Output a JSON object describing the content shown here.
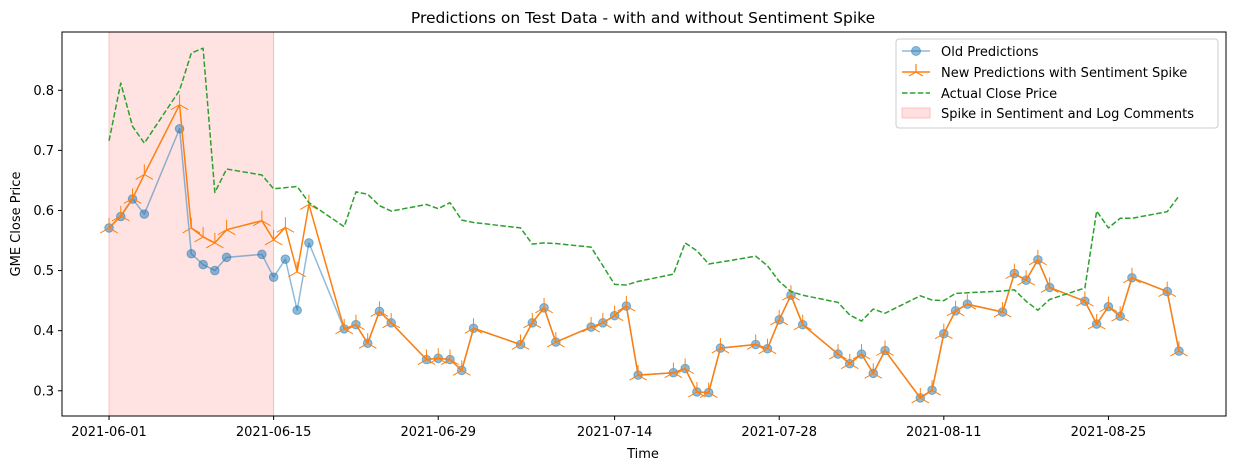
{
  "chart_data": {
    "type": "line",
    "title": "Predictions on Test Data - with and without Sentiment Spike",
    "xlabel": "Time",
    "ylabel": "GME Close Price",
    "xlim": [
      "2021-05-28",
      "2021-09-04"
    ],
    "ylim": [
      0.258,
      0.897
    ],
    "x_ticks": [
      "2021-06-01",
      "2021-06-15",
      "2021-06-29",
      "2021-07-14",
      "2021-07-28",
      "2021-08-11",
      "2021-08-25"
    ],
    "y_ticks": [
      0.3,
      0.4,
      0.5,
      0.6,
      0.7,
      0.8
    ],
    "y_tick_labels": [
      "0.3",
      "0.4",
      "0.5",
      "0.6",
      "0.7",
      "0.8"
    ],
    "spike_region": {
      "name": "Spike in Sentiment and Log Comments",
      "x_start": "2021-06-01",
      "x_end": "2021-06-15",
      "color": "#ffcccc"
    },
    "legend_position": "upper right",
    "series": [
      {
        "name": "Old Predictions",
        "color": "#1f77b4",
        "marker": "circle",
        "points": [
          [
            "2021-06-01",
            0.571
          ],
          [
            "2021-06-02",
            0.59
          ],
          [
            "2021-06-03",
            0.619
          ],
          [
            "2021-06-04",
            0.594
          ],
          [
            "2021-06-07",
            0.736
          ],
          [
            "2021-06-08",
            0.528
          ],
          [
            "2021-06-09",
            0.51
          ],
          [
            "2021-06-10",
            0.5
          ],
          [
            "2021-06-11",
            0.522
          ],
          [
            "2021-06-14",
            0.527
          ],
          [
            "2021-06-15",
            0.489
          ],
          [
            "2021-06-16",
            0.519
          ],
          [
            "2021-06-17",
            0.434
          ],
          [
            "2021-06-18",
            0.546
          ],
          [
            "2021-06-21",
            0.403
          ],
          [
            "2021-06-22",
            0.41
          ],
          [
            "2021-06-23",
            0.379
          ],
          [
            "2021-06-24",
            0.432
          ],
          [
            "2021-06-25",
            0.413
          ],
          [
            "2021-06-28",
            0.352
          ],
          [
            "2021-06-29",
            0.354
          ],
          [
            "2021-06-30",
            0.352
          ],
          [
            "2021-07-01",
            0.334
          ],
          [
            "2021-07-02",
            0.404
          ],
          [
            "2021-07-06",
            0.377
          ],
          [
            "2021-07-07",
            0.413
          ],
          [
            "2021-07-08",
            0.438
          ],
          [
            "2021-07-09",
            0.381
          ],
          [
            "2021-07-12",
            0.406
          ],
          [
            "2021-07-13",
            0.413
          ],
          [
            "2021-07-14",
            0.425
          ],
          [
            "2021-07-15",
            0.441
          ],
          [
            "2021-07-16",
            0.326
          ],
          [
            "2021-07-19",
            0.33
          ],
          [
            "2021-07-20",
            0.337
          ],
          [
            "2021-07-21",
            0.298
          ],
          [
            "2021-07-22",
            0.297
          ],
          [
            "2021-07-23",
            0.371
          ],
          [
            "2021-07-26",
            0.377
          ],
          [
            "2021-07-27",
            0.37
          ],
          [
            "2021-07-28",
            0.418
          ],
          [
            "2021-07-29",
            0.459
          ],
          [
            "2021-07-30",
            0.41
          ],
          [
            "2021-08-02",
            0.361
          ],
          [
            "2021-08-03",
            0.345
          ],
          [
            "2021-08-04",
            0.361
          ],
          [
            "2021-08-05",
            0.329
          ],
          [
            "2021-08-06",
            0.367
          ],
          [
            "2021-08-09",
            0.288
          ],
          [
            "2021-08-10",
            0.301
          ],
          [
            "2021-08-11",
            0.395
          ],
          [
            "2021-08-12",
            0.433
          ],
          [
            "2021-08-13",
            0.444
          ],
          [
            "2021-08-16",
            0.431
          ],
          [
            "2021-08-17",
            0.495
          ],
          [
            "2021-08-18",
            0.484
          ],
          [
            "2021-08-19",
            0.518
          ],
          [
            "2021-08-20",
            0.472
          ],
          [
            "2021-08-23",
            0.449
          ],
          [
            "2021-08-24",
            0.411
          ],
          [
            "2021-08-25",
            0.44
          ],
          [
            "2021-08-26",
            0.424
          ],
          [
            "2021-08-27",
            0.488
          ],
          [
            "2021-08-30",
            0.465
          ],
          [
            "2021-08-31",
            0.366
          ]
        ]
      },
      {
        "name": "New Predictions with Sentiment Spike",
        "color": "#ff7f0e",
        "marker": "tri_up",
        "points": [
          [
            "2021-06-01",
            0.571
          ],
          [
            "2021-06-02",
            0.591
          ],
          [
            "2021-06-03",
            0.62
          ],
          [
            "2021-06-04",
            0.66
          ],
          [
            "2021-06-07",
            0.776
          ],
          [
            "2021-06-08",
            0.571
          ],
          [
            "2021-06-09",
            0.556
          ],
          [
            "2021-06-10",
            0.546
          ],
          [
            "2021-06-11",
            0.568
          ],
          [
            "2021-06-14",
            0.583
          ],
          [
            "2021-06-15",
            0.551
          ],
          [
            "2021-06-16",
            0.572
          ],
          [
            "2021-06-17",
            0.498
          ],
          [
            "2021-06-18",
            0.61
          ],
          [
            "2021-06-21",
            0.403
          ],
          [
            "2021-06-22",
            0.41
          ],
          [
            "2021-06-23",
            0.379
          ],
          [
            "2021-06-24",
            0.432
          ],
          [
            "2021-06-25",
            0.413
          ],
          [
            "2021-06-28",
            0.352
          ],
          [
            "2021-06-29",
            0.354
          ],
          [
            "2021-06-30",
            0.352
          ],
          [
            "2021-07-01",
            0.334
          ],
          [
            "2021-07-02",
            0.404
          ],
          [
            "2021-07-06",
            0.377
          ],
          [
            "2021-07-07",
            0.413
          ],
          [
            "2021-07-08",
            0.438
          ],
          [
            "2021-07-09",
            0.381
          ],
          [
            "2021-07-12",
            0.406
          ],
          [
            "2021-07-13",
            0.413
          ],
          [
            "2021-07-14",
            0.425
          ],
          [
            "2021-07-15",
            0.441
          ],
          [
            "2021-07-16",
            0.326
          ],
          [
            "2021-07-19",
            0.33
          ],
          [
            "2021-07-20",
            0.337
          ],
          [
            "2021-07-21",
            0.298
          ],
          [
            "2021-07-22",
            0.297
          ],
          [
            "2021-07-23",
            0.371
          ],
          [
            "2021-07-26",
            0.377
          ],
          [
            "2021-07-27",
            0.37
          ],
          [
            "2021-07-28",
            0.418
          ],
          [
            "2021-07-29",
            0.459
          ],
          [
            "2021-07-30",
            0.41
          ],
          [
            "2021-08-02",
            0.361
          ],
          [
            "2021-08-03",
            0.345
          ],
          [
            "2021-08-04",
            0.361
          ],
          [
            "2021-08-05",
            0.329
          ],
          [
            "2021-08-06",
            0.367
          ],
          [
            "2021-08-09",
            0.288
          ],
          [
            "2021-08-10",
            0.301
          ],
          [
            "2021-08-11",
            0.395
          ],
          [
            "2021-08-12",
            0.433
          ],
          [
            "2021-08-13",
            0.444
          ],
          [
            "2021-08-16",
            0.431
          ],
          [
            "2021-08-17",
            0.495
          ],
          [
            "2021-08-18",
            0.484
          ],
          [
            "2021-08-19",
            0.518
          ],
          [
            "2021-08-20",
            0.472
          ],
          [
            "2021-08-23",
            0.449
          ],
          [
            "2021-08-24",
            0.411
          ],
          [
            "2021-08-25",
            0.44
          ],
          [
            "2021-08-26",
            0.424
          ],
          [
            "2021-08-27",
            0.488
          ],
          [
            "2021-08-30",
            0.465
          ],
          [
            "2021-08-31",
            0.366
          ]
        ]
      },
      {
        "name": "Actual Close Price",
        "color": "#2ca02c",
        "marker": "none",
        "linestyle": "dashed",
        "points": [
          [
            "2021-06-01",
            0.716
          ],
          [
            "2021-06-02",
            0.812
          ],
          [
            "2021-06-03",
            0.74
          ],
          [
            "2021-06-04",
            0.712
          ],
          [
            "2021-06-07",
            0.8
          ],
          [
            "2021-06-08",
            0.862
          ],
          [
            "2021-06-09",
            0.87
          ],
          [
            "2021-06-10",
            0.63
          ],
          [
            "2021-06-11",
            0.669
          ],
          [
            "2021-06-14",
            0.659
          ],
          [
            "2021-06-15",
            0.636
          ],
          [
            "2021-06-17",
            0.64
          ],
          [
            "2021-06-18",
            0.613
          ],
          [
            "2021-06-21",
            0.573
          ],
          [
            "2021-06-22",
            0.631
          ],
          [
            "2021-06-23",
            0.627
          ],
          [
            "2021-06-24",
            0.608
          ],
          [
            "2021-06-25",
            0.599
          ],
          [
            "2021-06-28",
            0.61
          ],
          [
            "2021-06-29",
            0.603
          ],
          [
            "2021-06-30",
            0.613
          ],
          [
            "2021-07-01",
            0.584
          ],
          [
            "2021-07-02",
            0.58
          ],
          [
            "2021-07-06",
            0.571
          ],
          [
            "2021-07-07",
            0.544
          ],
          [
            "2021-07-08",
            0.546
          ],
          [
            "2021-07-09",
            0.545
          ],
          [
            "2021-07-12",
            0.539
          ],
          [
            "2021-07-13",
            0.508
          ],
          [
            "2021-07-14",
            0.477
          ],
          [
            "2021-07-15",
            0.476
          ],
          [
            "2021-07-16",
            0.482
          ],
          [
            "2021-07-19",
            0.494
          ],
          [
            "2021-07-20",
            0.546
          ],
          [
            "2021-07-21",
            0.533
          ],
          [
            "2021-07-22",
            0.511
          ],
          [
            "2021-07-23",
            0.514
          ],
          [
            "2021-07-26",
            0.524
          ],
          [
            "2021-07-27",
            0.508
          ],
          [
            "2021-07-28",
            0.482
          ],
          [
            "2021-07-29",
            0.465
          ],
          [
            "2021-07-30",
            0.459
          ],
          [
            "2021-08-02",
            0.447
          ],
          [
            "2021-08-03",
            0.426
          ],
          [
            "2021-08-04",
            0.416
          ],
          [
            "2021-08-05",
            0.436
          ],
          [
            "2021-08-06",
            0.429
          ],
          [
            "2021-08-09",
            0.458
          ],
          [
            "2021-08-10",
            0.451
          ],
          [
            "2021-08-11",
            0.45
          ],
          [
            "2021-08-12",
            0.462
          ],
          [
            "2021-08-16",
            0.466
          ],
          [
            "2021-08-17",
            0.468
          ],
          [
            "2021-08-18",
            0.449
          ],
          [
            "2021-08-19",
            0.434
          ],
          [
            "2021-08-20",
            0.452
          ],
          [
            "2021-08-23",
            0.471
          ],
          [
            "2021-08-24",
            0.599
          ],
          [
            "2021-08-25",
            0.571
          ],
          [
            "2021-08-26",
            0.587
          ],
          [
            "2021-08-27",
            0.587
          ],
          [
            "2021-08-30",
            0.598
          ],
          [
            "2021-08-31",
            0.624
          ]
        ]
      }
    ]
  }
}
